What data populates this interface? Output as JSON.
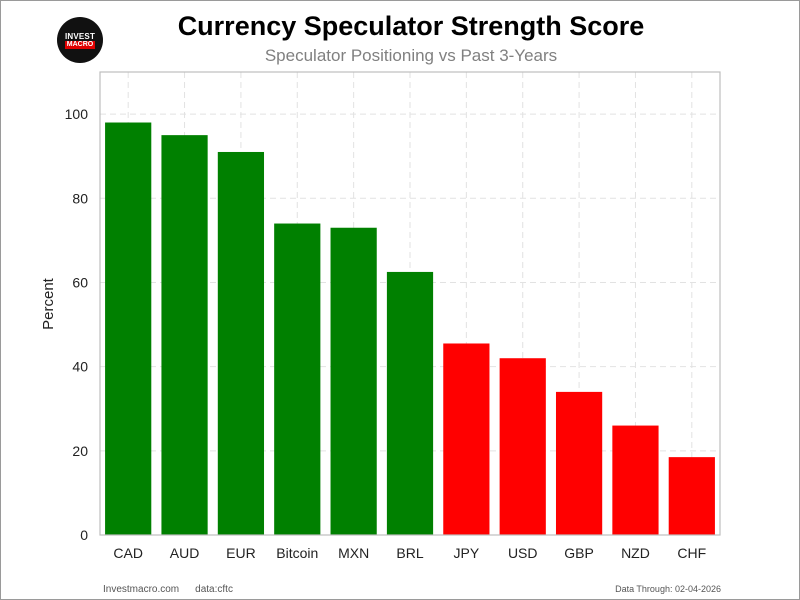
{
  "logo": {
    "line1": "INVEST",
    "line2": "MACRO"
  },
  "footer": {
    "site": "Investmacro.com",
    "source": "data:cftc",
    "date": "Data Through: 02-04-2026"
  },
  "chart_data": {
    "type": "bar",
    "title": "Currency Speculator Strength Score",
    "subtitle": "Speculator Positioning vs Past 3-Years",
    "xlabel": "",
    "ylabel": "Percent",
    "ylim": [
      0,
      110
    ],
    "yticks": [
      0,
      20,
      40,
      60,
      80,
      100
    ],
    "grid": true,
    "categories": [
      "CAD",
      "AUD",
      "EUR",
      "Bitcoin",
      "MXN",
      "BRL",
      "JPY",
      "USD",
      "GBP",
      "NZD",
      "CHF"
    ],
    "values": [
      98,
      95,
      91,
      74,
      73,
      62.5,
      45.5,
      42,
      34,
      26,
      18.5
    ],
    "colors": [
      "#008000",
      "#008000",
      "#008000",
      "#008000",
      "#008000",
      "#008000",
      "#ff0000",
      "#ff0000",
      "#ff0000",
      "#ff0000",
      "#ff0000"
    ]
  }
}
